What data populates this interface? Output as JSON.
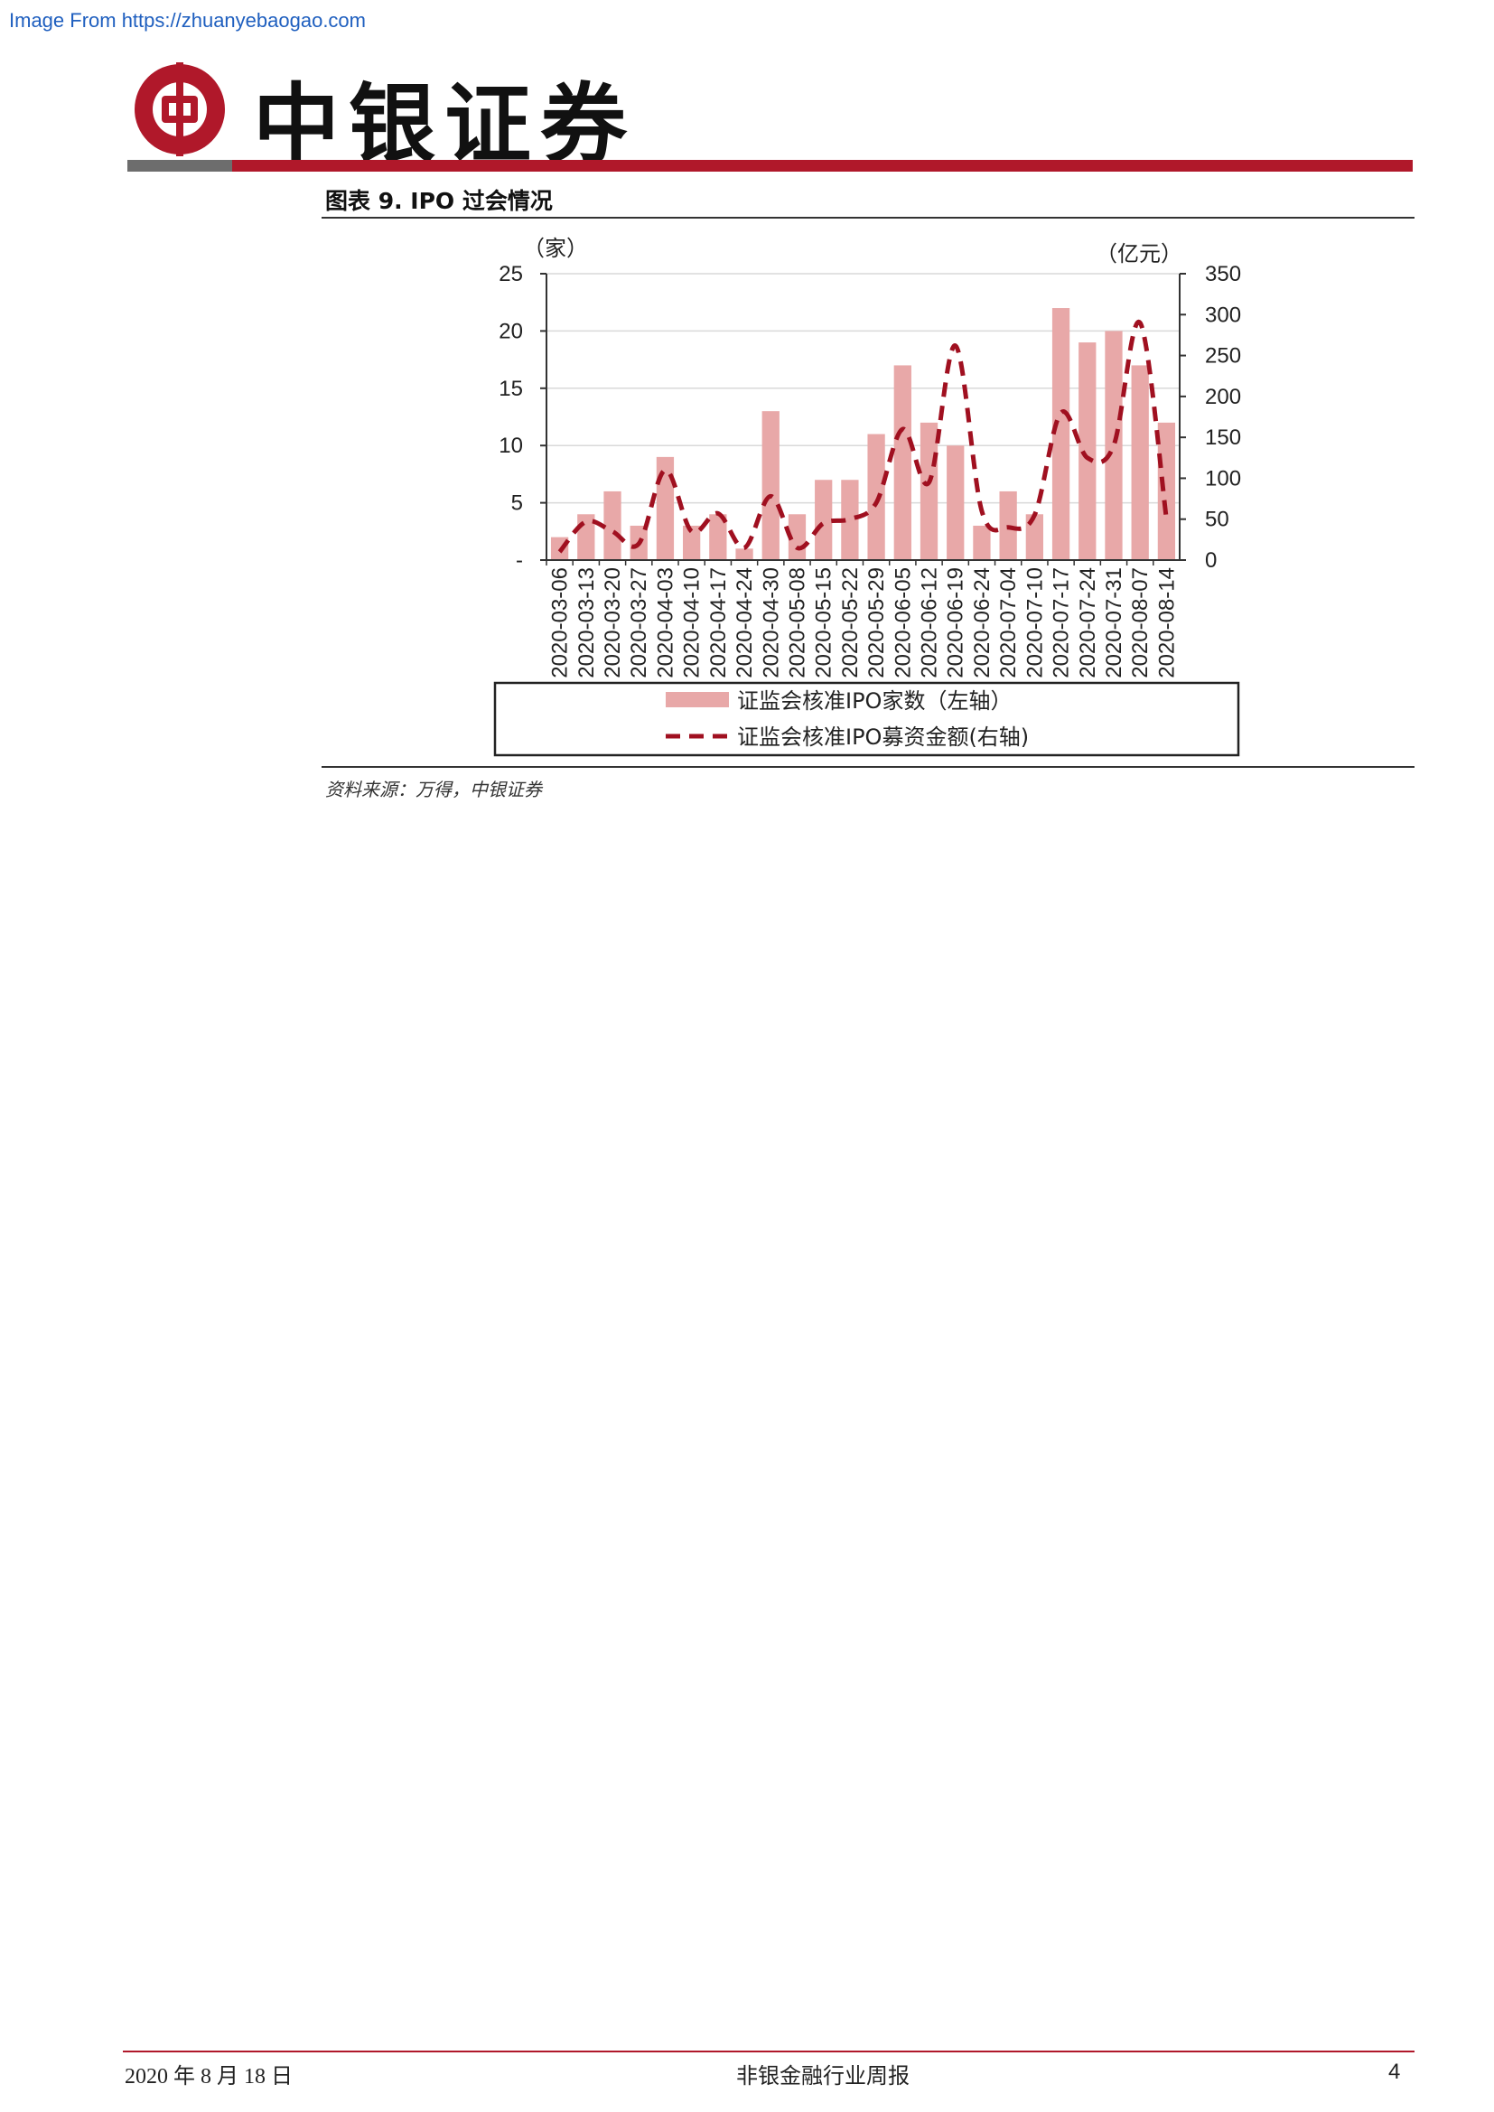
{
  "watermark": "Image From https://zhuanyebaogao.com",
  "brand": {
    "name": "中银证券",
    "logo_color": "#b0182a"
  },
  "figure": {
    "title": "图表 9. IPO 过会情况",
    "source": "资料来源：万得，中银证券"
  },
  "footer": {
    "date": "2020 年 8 月 18 日",
    "report": "非银金融行业周报",
    "page": "4"
  },
  "colors": {
    "bar": "#e8a8a8",
    "line": "#a01020",
    "accent": "#b0182a"
  },
  "chart_data": {
    "type": "bar",
    "left_unit": "（家）",
    "right_unit": "（亿元）",
    "y_left_ticks": [
      "-",
      "5",
      "10",
      "15",
      "20",
      "25"
    ],
    "y_right_ticks": [
      "0",
      "50",
      "100",
      "150",
      "200",
      "250",
      "300",
      "350"
    ],
    "ylim_left": [
      0,
      25
    ],
    "ylim_right": [
      0,
      350
    ],
    "grid": true,
    "legend_position": "bottom",
    "categories": [
      "2020-03-06",
      "2020-03-13",
      "2020-03-20",
      "2020-03-27",
      "2020-04-03",
      "2020-04-10",
      "2020-04-17",
      "2020-04-24",
      "2020-04-30",
      "2020-05-08",
      "2020-05-15",
      "2020-05-22",
      "2020-05-29",
      "2020-06-05",
      "2020-06-12",
      "2020-06-19",
      "2020-06-24",
      "2020-07-04",
      "2020-07-10",
      "2020-07-17",
      "2020-07-24",
      "2020-07-31",
      "2020-08-07",
      "2020-08-14"
    ],
    "series": [
      {
        "name": "证监会核准IPO家数（左轴）",
        "type": "bar",
        "axis": "left",
        "values": [
          2,
          4,
          6,
          3,
          9,
          3,
          4,
          1,
          13,
          4,
          7,
          7,
          11,
          17,
          12,
          10,
          3,
          6,
          4,
          22,
          19,
          20,
          17,
          12
        ]
      },
      {
        "name": "证监会核准IPO募资金额(右轴)",
        "type": "line",
        "axis": "right",
        "style": "dashed",
        "values": [
          10,
          47,
          35,
          20,
          110,
          35,
          57,
          15,
          78,
          15,
          45,
          50,
          70,
          160,
          95,
          262,
          60,
          40,
          55,
          180,
          125,
          140,
          290,
          50
        ]
      }
    ]
  }
}
